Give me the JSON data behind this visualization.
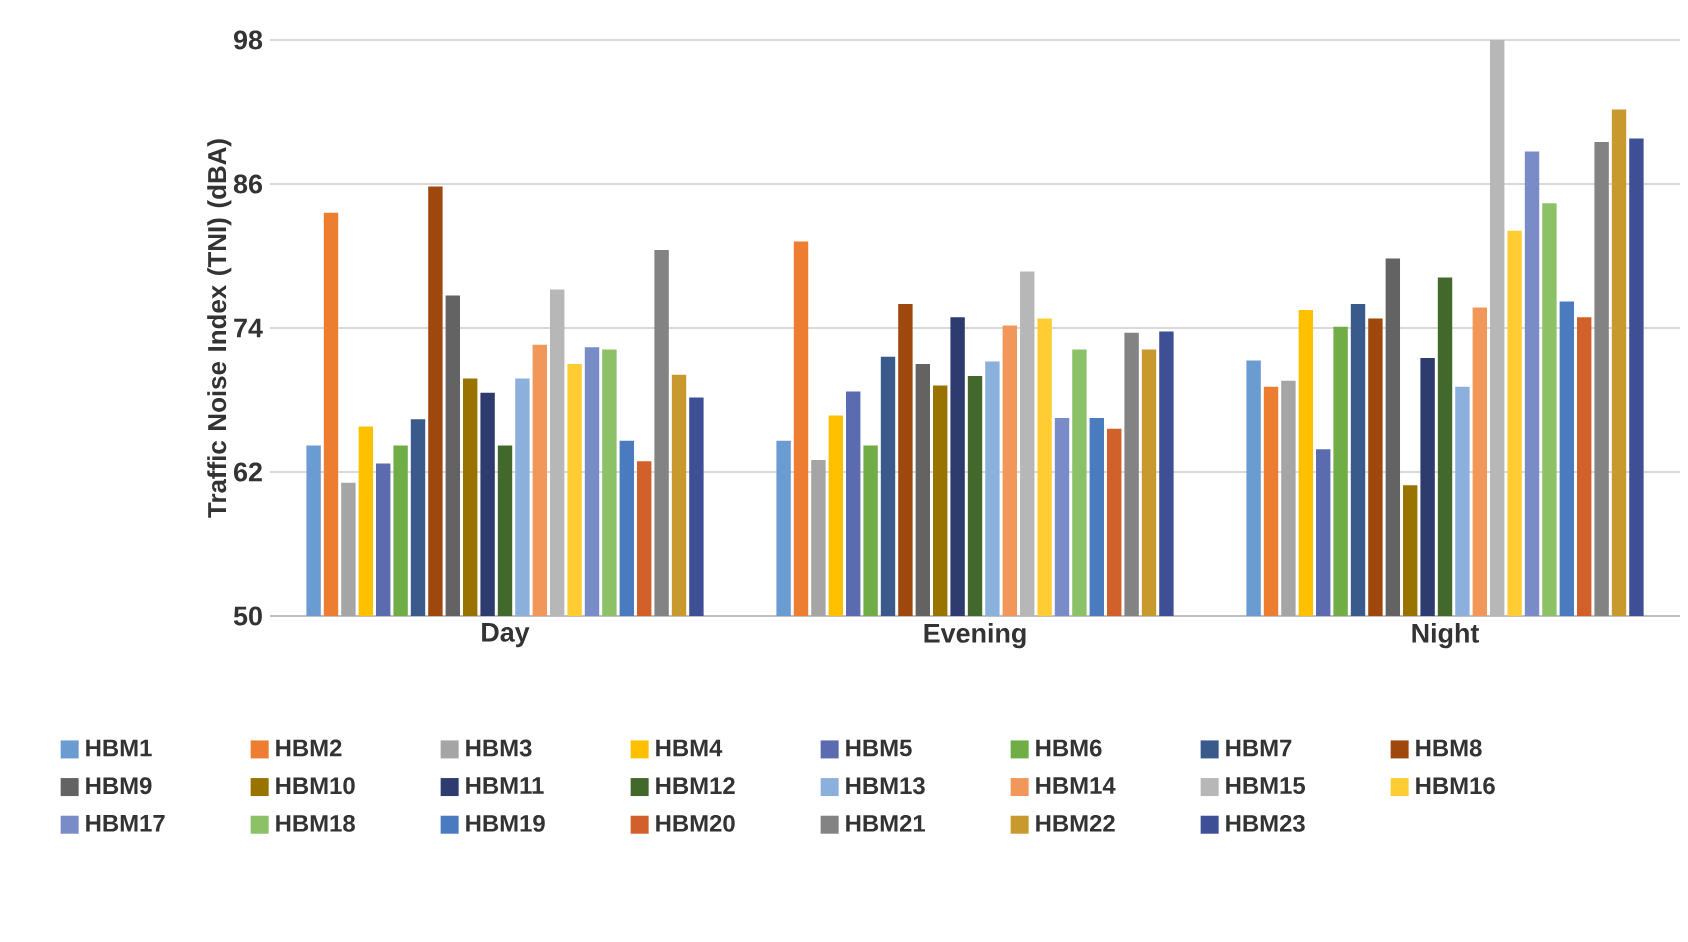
{
  "chart_data": {
    "type": "bar",
    "ylabel": "Traffic Noise Index (TNI) (dBA)",
    "categories": [
      "Day",
      "Evening",
      "Night"
    ],
    "ylim": [
      50,
      98
    ],
    "yticks": [
      50,
      62,
      74,
      86,
      98
    ],
    "grid": "y",
    "legend": "bottom",
    "series": [
      {
        "name": "HBM1",
        "color": "#6a9bd1",
        "values": [
          64.2,
          64.6,
          71.3
        ]
      },
      {
        "name": "HBM2",
        "color": "#ed7d31",
        "values": [
          83.6,
          81.2,
          69.1
        ]
      },
      {
        "name": "HBM3",
        "color": "#a5a5a5",
        "values": [
          61.1,
          63.0,
          69.6
        ]
      },
      {
        "name": "HBM4",
        "color": "#ffc000",
        "values": [
          65.8,
          66.7,
          75.5
        ]
      },
      {
        "name": "HBM5",
        "color": "#5b6bb0",
        "values": [
          62.7,
          68.7,
          63.9
        ]
      },
      {
        "name": "HBM6",
        "color": "#70ad47",
        "values": [
          64.2,
          64.2,
          74.1
        ]
      },
      {
        "name": "HBM7",
        "color": "#3a5a8c",
        "values": [
          66.4,
          71.6,
          76.0
        ]
      },
      {
        "name": "HBM8",
        "color": "#9e480e",
        "values": [
          85.8,
          76.0,
          74.8
        ]
      },
      {
        "name": "HBM9",
        "color": "#636363",
        "values": [
          76.7,
          71.0,
          79.8
        ]
      },
      {
        "name": "HBM10",
        "color": "#997300",
        "values": [
          69.8,
          69.2,
          60.9
        ]
      },
      {
        "name": "HBM11",
        "color": "#2e3b6e",
        "values": [
          68.6,
          74.9,
          71.5
        ]
      },
      {
        "name": "HBM12",
        "color": "#43682b",
        "values": [
          64.2,
          70.0,
          78.2
        ]
      },
      {
        "name": "HBM13",
        "color": "#8cb0dc",
        "values": [
          69.8,
          71.2,
          69.1
        ]
      },
      {
        "name": "HBM14",
        "color": "#f1975a",
        "values": [
          72.6,
          74.2,
          75.7
        ]
      },
      {
        "name": "HBM15",
        "color": "#b7b7b7",
        "values": [
          77.2,
          78.7,
          98.0
        ]
      },
      {
        "name": "HBM16",
        "color": "#ffcd33",
        "values": [
          71.0,
          74.8,
          82.1
        ]
      },
      {
        "name": "HBM17",
        "color": "#7a8cc8",
        "values": [
          72.4,
          66.5,
          88.7
        ]
      },
      {
        "name": "HBM18",
        "color": "#8cc168",
        "values": [
          72.2,
          72.2,
          84.4
        ]
      },
      {
        "name": "HBM19",
        "color": "#4a7bbf",
        "values": [
          64.6,
          66.5,
          76.2
        ]
      },
      {
        "name": "HBM20",
        "color": "#d2602a",
        "values": [
          62.9,
          65.6,
          74.9
        ]
      },
      {
        "name": "HBM21",
        "color": "#838383",
        "values": [
          80.5,
          73.6,
          89.5
        ]
      },
      {
        "name": "HBM22",
        "color": "#c89a2e",
        "values": [
          70.1,
          72.2,
          92.2
        ]
      },
      {
        "name": "HBM23",
        "color": "#3e4f95",
        "values": [
          68.2,
          73.7,
          89.8
        ]
      }
    ]
  }
}
